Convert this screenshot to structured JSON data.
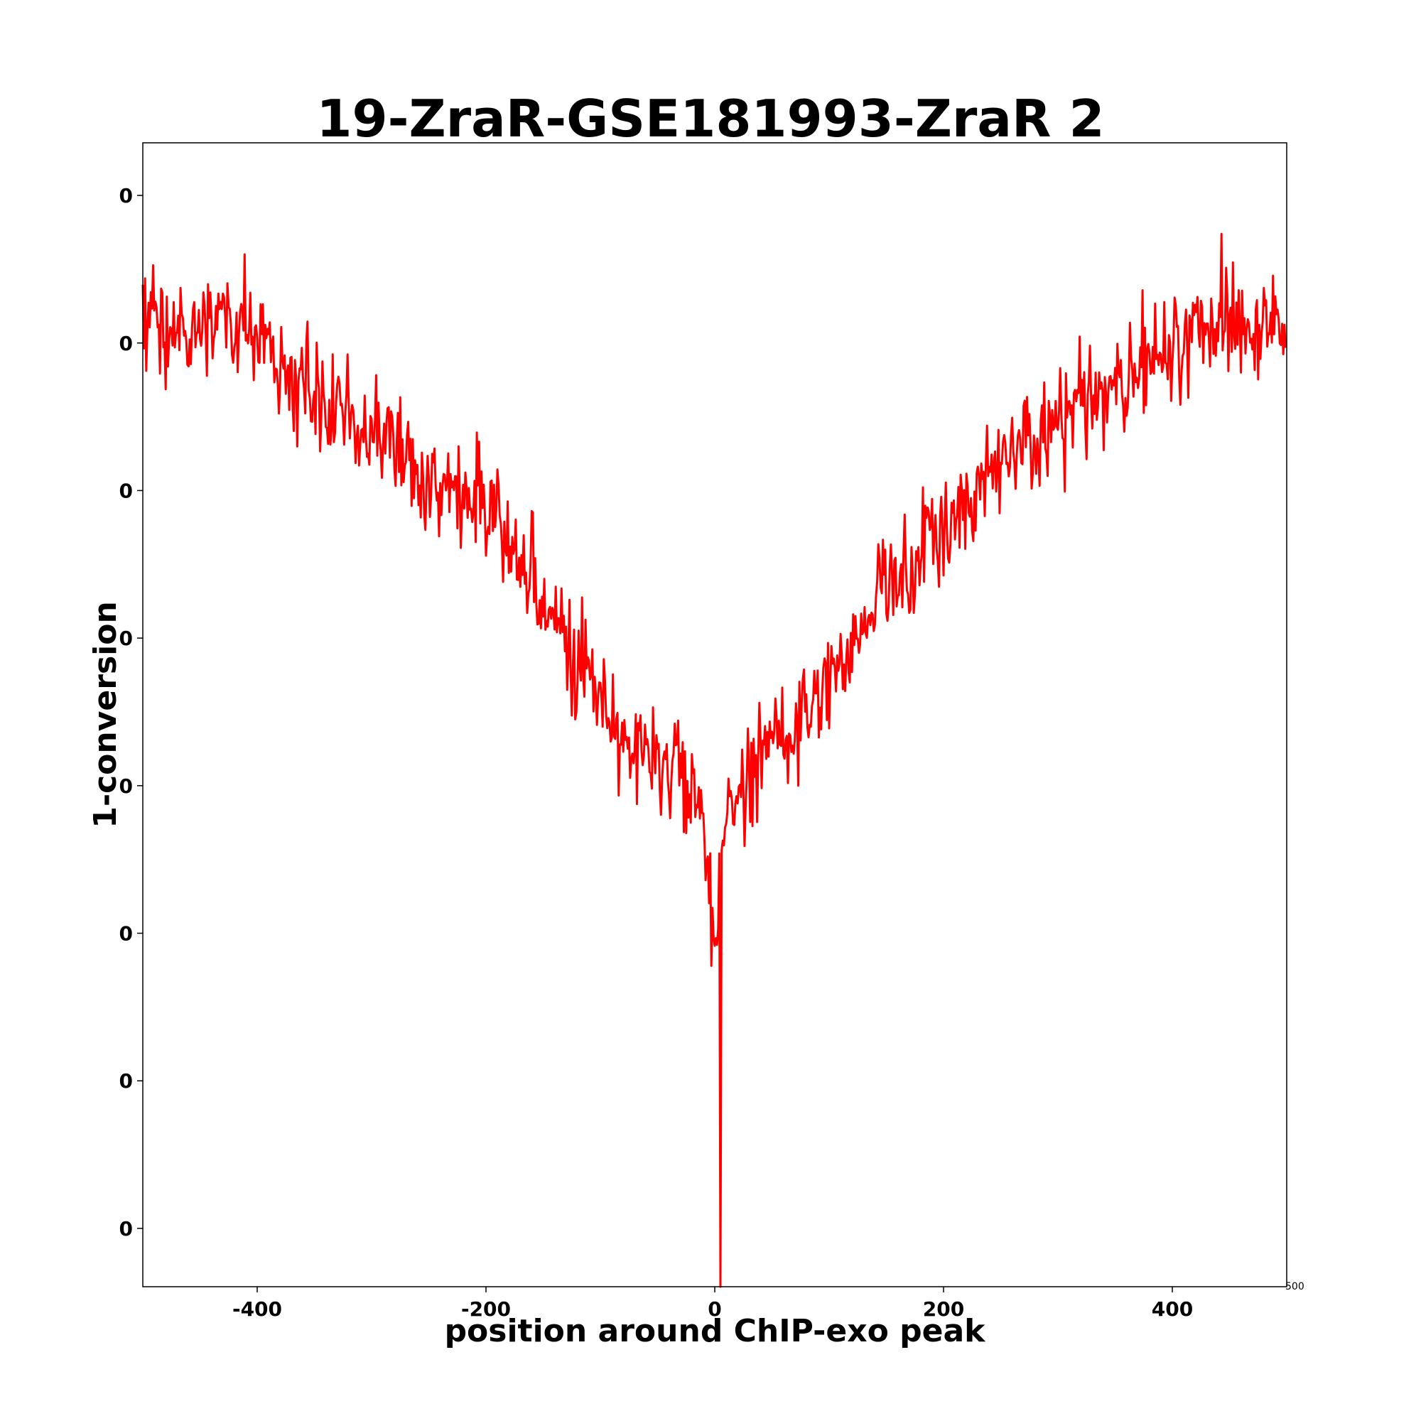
{
  "chart_data": {
    "type": "line",
    "title": "19-ZraR-GSE181993-ZraR 2",
    "xlabel": "position around ChIP-exo peak",
    "ylabel": "1-conversion",
    "xlim": [
      -500,
      500
    ],
    "ylim": [
      0,
      1
    ],
    "grid": false,
    "color": "#ff0000",
    "x_ticks": [
      {
        "value": -400,
        "label": "-400"
      },
      {
        "value": -200,
        "label": "-200"
      },
      {
        "value": 0,
        "label": "0"
      },
      {
        "value": 200,
        "label": "200"
      },
      {
        "value": 400,
        "label": "400"
      }
    ],
    "x_edge_label": "500",
    "y_ticks": [
      {
        "value": 0.954,
        "label": "0"
      },
      {
        "value": 0.825,
        "label": "0"
      },
      {
        "value": 0.696,
        "label": "0"
      },
      {
        "value": 0.567,
        "label": "0"
      },
      {
        "value": 0.438,
        "label": "0"
      },
      {
        "value": 0.309,
        "label": "0"
      },
      {
        "value": 0.18,
        "label": "0"
      },
      {
        "value": 0.051,
        "label": "0"
      }
    ],
    "series": [
      {
        "x": [
          -500,
          -490,
          -480,
          -470,
          -460,
          -450,
          -440,
          -430,
          -420,
          -410,
          -400,
          -390,
          -380,
          -370,
          -360,
          -350,
          -340,
          -330,
          -320,
          -310,
          -300,
          -290,
          -280,
          -270,
          -260,
          -250,
          -240,
          -230,
          -220,
          -210,
          -200,
          -190,
          -180,
          -170,
          -160,
          -150,
          -140,
          -130,
          -120,
          -110,
          -100,
          -90,
          -80,
          -70,
          -60,
          -50,
          -40,
          -30,
          -20,
          -10,
          0,
          10,
          20,
          30,
          40,
          50,
          60,
          70,
          80,
          90,
          100,
          110,
          120,
          130,
          140,
          150,
          160,
          170,
          180,
          190,
          200,
          210,
          220,
          230,
          240,
          250,
          260,
          270,
          280,
          290,
          300,
          310,
          320,
          330,
          340,
          350,
          360,
          370,
          380,
          390,
          400,
          410,
          420,
          430,
          440,
          450,
          460,
          470,
          480,
          490,
          500
        ],
        "values": [
          0.84,
          0.86,
          0.83,
          0.85,
          0.82,
          0.84,
          0.85,
          0.86,
          0.83,
          0.85,
          0.83,
          0.84,
          0.8,
          0.79,
          0.8,
          0.78,
          0.77,
          0.76,
          0.79,
          0.73,
          0.76,
          0.74,
          0.75,
          0.72,
          0.71,
          0.72,
          0.7,
          0.71,
          0.69,
          0.7,
          0.67,
          0.68,
          0.65,
          0.63,
          0.62,
          0.61,
          0.58,
          0.56,
          0.55,
          0.54,
          0.52,
          0.5,
          0.48,
          0.47,
          0.46,
          0.47,
          0.44,
          0.45,
          0.42,
          0.4,
          0.28,
          0.42,
          0.43,
          0.45,
          0.46,
          0.48,
          0.47,
          0.49,
          0.5,
          0.52,
          0.53,
          0.54,
          0.56,
          0.58,
          0.6,
          0.62,
          0.61,
          0.63,
          0.64,
          0.66,
          0.65,
          0.67,
          0.68,
          0.7,
          0.71,
          0.72,
          0.73,
          0.74,
          0.73,
          0.75,
          0.76,
          0.77,
          0.78,
          0.77,
          0.79,
          0.8,
          0.79,
          0.81,
          0.8,
          0.82,
          0.83,
          0.82,
          0.84,
          0.83,
          0.85,
          0.84,
          0.85,
          0.83,
          0.84,
          0.85,
          0.82
        ]
      }
    ]
  }
}
